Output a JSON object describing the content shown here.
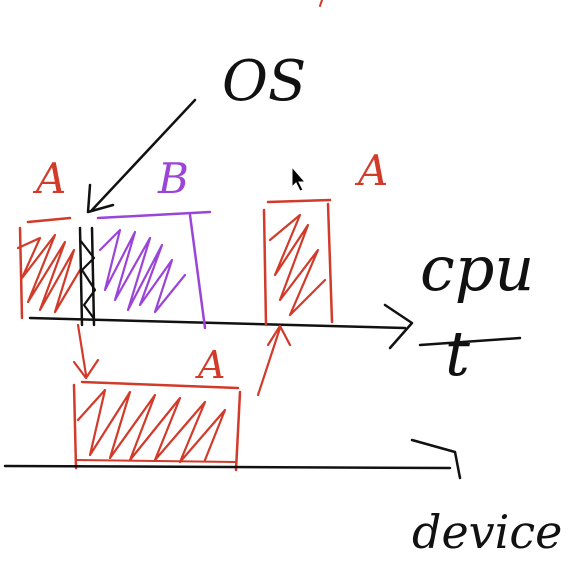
{
  "labels": {
    "os": "OS",
    "process_a_first": "A",
    "process_b": "B",
    "process_a_second": "A",
    "process_a_device": "A",
    "cpu": "cpu",
    "time": "t",
    "device": "device"
  },
  "colors": {
    "ink": "#111111",
    "process_a": "#d23a2a",
    "process_b": "#9b45d8",
    "background": "#ffffff",
    "cursor": "#000000"
  },
  "icons": {
    "cursor": "mouse-pointer-icon"
  }
}
